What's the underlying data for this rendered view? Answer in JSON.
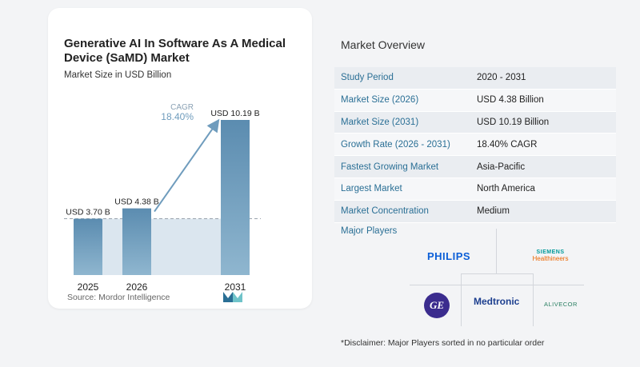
{
  "chart": {
    "title": "Generative AI In Software As A Medical Device (SaMD) Market",
    "subtitle": "Market Size in USD Billion",
    "cagr_label": "CAGR",
    "cagr_value": "18.40%",
    "source": "Source:  Mordor Intelligence"
  },
  "chart_data": {
    "type": "bar",
    "categories": [
      "2025",
      "2026",
      "2031"
    ],
    "values": [
      3.7,
      4.38,
      10.19
    ],
    "value_labels": [
      "USD 3.70 B",
      "USD 4.38 B",
      "USD 10.19 B"
    ],
    "title": "Generative AI In Software As A Medical Device (SaMD) Market",
    "subtitle": "Market Size in USD Billion",
    "ylim": [
      0,
      10.19
    ],
    "grid": false,
    "annotation": "CAGR 18.40%"
  },
  "overview": {
    "title": "Market Overview",
    "rows": [
      {
        "key": "Study Period",
        "value": "2020 - 2031"
      },
      {
        "key": "Market Size (2026)",
        "value": "USD 4.38 Billion"
      },
      {
        "key": "Market Size (2031)",
        "value": "USD 10.19 Billion"
      },
      {
        "key": "Growth Rate (2026 - 2031)",
        "value": "18.40% CAGR"
      },
      {
        "key": "Fastest Growing Market",
        "value": "Asia-Pacific"
      },
      {
        "key": "Largest Market",
        "value": "North America"
      },
      {
        "key": "Market Concentration",
        "value": "Medium"
      }
    ]
  },
  "players": {
    "title": "Major Players",
    "philips": "PHILIPS",
    "siemens_top": "SIEMENS",
    "siemens_bottom": "Healthineers",
    "medtronic": "Medtronic",
    "ge": "GE",
    "alivecor": "ALIVECOR",
    "disclaimer": "*Disclaimer: Major Players sorted in no particular order"
  },
  "colors": {
    "bar": "#6f9cbd",
    "shade": "#dbe6ef",
    "accent": "#2a6f95"
  }
}
